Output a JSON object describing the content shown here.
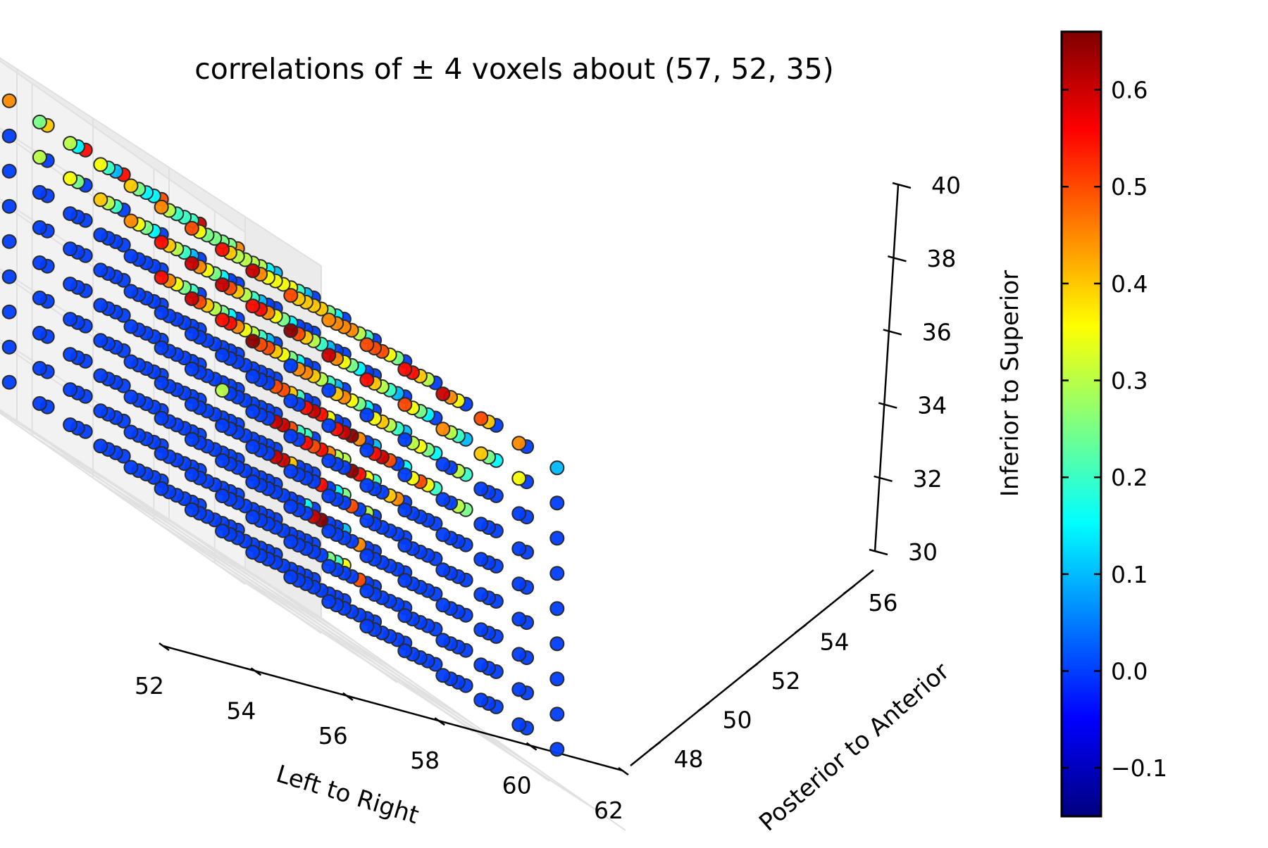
{
  "chart_data": {
    "type": "scatter",
    "projection": "3d",
    "title": "correlations of ± 4 voxels about (57, 52, 35)",
    "center": [
      57,
      52,
      35
    ],
    "radius": 4,
    "xlabel": "Left to Right",
    "ylabel": "Posterior to Anterior",
    "zlabel": "Inferior to Superior",
    "xlim": [
      52,
      62
    ],
    "ylim": [
      47,
      57
    ],
    "zlim": [
      30,
      40
    ],
    "xticks": [
      52,
      54,
      56,
      58,
      60,
      62
    ],
    "yticks": [
      48,
      50,
      52,
      54,
      56
    ],
    "zticks": [
      30,
      32,
      34,
      36,
      38,
      40
    ],
    "xtick_labels": [
      "52",
      "54",
      "56",
      "58",
      "60",
      "62"
    ],
    "ytick_labels": [
      "48",
      "50",
      "52",
      "54",
      "56"
    ],
    "ztick_labels": [
      "30",
      "32",
      "34",
      "36",
      "38",
      "40"
    ],
    "x_values": [
      53,
      54,
      55,
      56,
      57,
      58,
      59,
      60,
      61
    ],
    "y_values": [
      48,
      49,
      50,
      51,
      52,
      53,
      54,
      55,
      56
    ],
    "z_values": [
      31,
      32,
      33,
      34,
      35,
      36,
      37,
      38,
      39
    ],
    "value_layout": "values[z_index][y_index] is an array over x_values",
    "values": [
      [
        [
          0.0,
          0.0,
          0.0,
          0.0,
          0.0,
          0.0,
          0.0,
          0.0,
          0.0
        ],
        [
          0.0,
          0.0,
          0.0,
          0.0,
          0.0,
          0.0,
          0.0,
          0.0,
          0.0
        ],
        [
          0.0,
          0.0,
          0.0,
          0.0,
          0.0,
          0.0,
          0.0,
          0.0,
          0.0
        ],
        [
          0.0,
          0.0,
          0.0,
          0.0,
          0.0,
          0.0,
          0.0,
          0.0,
          0.0
        ],
        [
          0.0,
          0.0,
          0.0,
          0.0,
          0.0,
          0.0,
          0.0,
          0.0,
          0.0
        ],
        [
          0.0,
          0.0,
          0.0,
          0.0,
          0.0,
          0.0,
          0.0,
          0.0,
          0.0
        ],
        [
          0.0,
          0.0,
          0.0,
          0.0,
          0.0,
          0.0,
          0.0,
          0.0,
          0.0
        ],
        [
          0.0,
          0.0,
          0.0,
          0.0,
          0.0,
          0.0,
          0.0,
          0.0,
          0.0
        ],
        [
          0.0,
          0.0,
          0.0,
          0.0,
          0.0,
          0.0,
          0.0,
          0.0,
          0.0
        ]
      ],
      [
        [
          0.0,
          0.0,
          0.0,
          0.0,
          0.0,
          0.0,
          0.0,
          0.0,
          0.0
        ],
        [
          0.0,
          0.0,
          0.0,
          0.0,
          0.0,
          0.0,
          0.0,
          0.0,
          0.0
        ],
        [
          0.0,
          0.0,
          0.0,
          0.0,
          0.0,
          0.0,
          0.0,
          0.0,
          0.0
        ],
        [
          0.0,
          0.0,
          0.0,
          0.0,
          0.0,
          0.0,
          0.0,
          0.0,
          0.0
        ],
        [
          0.0,
          0.0,
          0.0,
          0.0,
          0.0,
          0.0,
          0.5,
          0.0,
          0.0
        ],
        [
          0.0,
          0.0,
          0.0,
          0.0,
          0.0,
          0.0,
          0.25,
          0.0,
          0.0
        ],
        [
          0.0,
          0.0,
          0.0,
          0.0,
          0.0,
          0.0,
          0.0,
          0.2,
          0.0
        ],
        [
          0.0,
          0.0,
          0.0,
          0.0,
          0.0,
          0.0,
          0.0,
          0.0,
          0.35
        ],
        [
          0.0,
          0.0,
          0.0,
          0.0,
          0.0,
          0.0,
          0.0,
          0.0,
          0.0
        ]
      ],
      [
        [
          0.0,
          0.0,
          0.0,
          0.0,
          0.0,
          0.0,
          0.0,
          0.0,
          0.0
        ],
        [
          0.0,
          0.0,
          0.0,
          0.0,
          0.0,
          0.0,
          0.0,
          0.0,
          0.0
        ],
        [
          0.0,
          0.0,
          0.0,
          0.0,
          0.0,
          0.0,
          0.0,
          0.0,
          0.0
        ],
        [
          0.0,
          0.0,
          0.0,
          0.0,
          0.6,
          0.0,
          0.0,
          0.0,
          0.0
        ],
        [
          0.0,
          0.0,
          0.0,
          0.0,
          0.0,
          0.65,
          0.45,
          0.0,
          0.0
        ],
        [
          0.0,
          0.0,
          0.0,
          0.0,
          0.0,
          0.0,
          0.0,
          0.0,
          0.0
        ],
        [
          0.0,
          0.0,
          0.0,
          0.0,
          0.0,
          0.0,
          0.0,
          0.0,
          0.0
        ],
        [
          0.0,
          0.0,
          0.0,
          0.0,
          0.0,
          0.0,
          0.0,
          0.15,
          0.1
        ],
        [
          0.0,
          0.0,
          0.0,
          0.0,
          0.0,
          0.0,
          0.0,
          0.0,
          0.0
        ]
      ],
      [
        [
          0.0,
          0.0,
          0.0,
          0.0,
          0.0,
          0.0,
          0.0,
          0.0,
          0.0
        ],
        [
          0.0,
          0.0,
          0.0,
          0.0,
          0.0,
          0.0,
          0.0,
          0.0,
          0.0
        ],
        [
          0.0,
          0.0,
          0.0,
          0.0,
          0.0,
          0.0,
          0.0,
          0.0,
          0.0
        ],
        [
          0.0,
          0.0,
          0.0,
          0.6,
          0.0,
          0.5,
          0.0,
          0.0,
          0.0
        ],
        [
          0.0,
          0.0,
          0.0,
          0.0,
          0.6,
          0.55,
          0.0,
          0.0,
          0.0
        ],
        [
          0.0,
          0.0,
          0.0,
          0.0,
          0.0,
          0.4,
          0.0,
          0.3,
          0.0
        ],
        [
          0.0,
          0.0,
          0.0,
          0.0,
          0.0,
          0.0,
          0.0,
          0.15,
          0.0
        ],
        [
          0.0,
          0.0,
          0.0,
          0.0,
          0.0,
          0.0,
          0.0,
          0.0,
          0.25
        ],
        [
          0.0,
          0.0,
          0.0,
          0.0,
          0.0,
          0.0,
          0.0,
          0.0,
          0.0
        ]
      ],
      [
        [
          0.0,
          0.0,
          0.0,
          0.0,
          0.0,
          0.0,
          0.0,
          0.0,
          0.0
        ],
        [
          0.3,
          0.0,
          0.0,
          0.0,
          0.0,
          0.0,
          0.0,
          0.0,
          0.0
        ],
        [
          0.0,
          0.0,
          0.0,
          0.55,
          0.0,
          0.0,
          0.0,
          0.0,
          0.0
        ],
        [
          0.0,
          0.0,
          0.0,
          0.6,
          0.5,
          0.65,
          0.4,
          0.0,
          0.0
        ],
        [
          0.0,
          0.0,
          0.0,
          0.0,
          0.6,
          0.55,
          0.55,
          0.45,
          0.0
        ],
        [
          0.0,
          0.0,
          0.0,
          0.0,
          0.0,
          0.5,
          0.45,
          0.35,
          0.0
        ],
        [
          0.0,
          0.0,
          0.0,
          0.0,
          0.0,
          0.0,
          0.2,
          0.3,
          0.2
        ],
        [
          0.0,
          0.0,
          0.0,
          0.0,
          0.0,
          0.0,
          0.0,
          0.2,
          0.3
        ],
        [
          0.0,
          0.0,
          0.0,
          0.0,
          0.0,
          0.0,
          0.0,
          0.0,
          0.0
        ]
      ],
      [
        [
          0.0,
          0.0,
          0.0,
          0.0,
          0.0,
          0.0,
          0.0,
          0.0,
          0.0
        ],
        [
          0.0,
          0.0,
          0.0,
          0.55,
          0.55,
          0.35,
          0.0,
          0.0,
          0.0
        ],
        [
          0.0,
          0.0,
          0.0,
          0.55,
          0.6,
          0.6,
          0.5,
          0.3,
          0.0
        ],
        [
          0.0,
          0.0,
          0.0,
          0.5,
          0.6,
          0.65,
          0.5,
          0.35,
          0.25
        ],
        [
          0.0,
          0.0,
          0.0,
          0.0,
          0.5,
          0.55,
          0.45,
          0.0,
          0.2
        ],
        [
          0.0,
          0.0,
          0.0,
          0.0,
          0.0,
          0.4,
          0.35,
          0.0,
          0.15
        ],
        [
          0.0,
          0.0,
          0.0,
          0.0,
          0.0,
          0.0,
          0.2,
          0.0,
          0.1
        ],
        [
          0.0,
          0.0,
          0.0,
          0.0,
          0.0,
          0.0,
          0.0,
          0.0,
          0.0
        ],
        [
          0.0,
          0.0,
          0.0,
          0.0,
          0.0,
          0.0,
          0.0,
          0.0,
          0.0
        ]
      ],
      [
        [
          0.65,
          0.0,
          0.0,
          0.0,
          0.0,
          0.0,
          0.0,
          0.0,
          0.0
        ],
        [
          0.55,
          0.5,
          0.45,
          0.4,
          0.35,
          0.3,
          0.0,
          0.0,
          0.0
        ],
        [
          0.6,
          0.55,
          0.5,
          0.45,
          0.45,
          0.4,
          0.35,
          0.3,
          0.0
        ],
        [
          0.55,
          0.5,
          0.45,
          0.4,
          0.4,
          0.35,
          0.3,
          0.25,
          0.2
        ],
        [
          0.0,
          0.45,
          0.4,
          0.35,
          0.35,
          0.3,
          0.25,
          0.2,
          0.15
        ],
        [
          0.0,
          0.0,
          0.35,
          0.3,
          0.3,
          0.25,
          0.2,
          0.15,
          0.1
        ],
        [
          0.0,
          0.0,
          0.0,
          0.25,
          0.25,
          0.2,
          0.15,
          0.1,
          0.0
        ],
        [
          0.0,
          0.0,
          0.0,
          0.0,
          0.2,
          0.15,
          0.1,
          0.0,
          0.0
        ],
        [
          0.0,
          0.0,
          0.0,
          0.0,
          0.0,
          0.0,
          0.0,
          0.0,
          0.0
        ]
      ],
      [
        [
          0.55,
          0.65,
          0.6,
          0.55,
          0.5,
          0.45,
          0.4,
          0.35,
          0.0
        ],
        [
          0.6,
          0.55,
          0.5,
          0.45,
          0.4,
          0.35,
          0.3,
          0.25,
          0.0
        ],
        [
          0.6,
          0.5,
          0.45,
          0.4,
          0.35,
          0.3,
          0.25,
          0.2,
          0.15
        ],
        [
          0.55,
          0.45,
          0.4,
          0.35,
          0.3,
          0.25,
          0.2,
          0.15,
          0.1
        ],
        [
          0.45,
          0.4,
          0.35,
          0.3,
          0.25,
          0.2,
          0.15,
          0.1,
          0.0
        ],
        [
          0.4,
          0.35,
          0.3,
          0.25,
          0.2,
          0.15,
          0.1,
          0.0,
          0.0
        ],
        [
          0.35,
          0.3,
          0.25,
          0.2,
          0.15,
          0.1,
          0.0,
          0.0,
          0.0
        ],
        [
          0.3,
          0.25,
          0.2,
          0.15,
          0.1,
          0.0,
          0.0,
          0.0,
          0.0
        ],
        [
          0.0,
          0.0,
          0.0,
          0.0,
          0.0,
          0.0,
          0.0,
          0.0,
          0.0
        ]
      ],
      [
        [
          0.6,
          0.5,
          0.45,
          0.5,
          0.55,
          0.6,
          0.5,
          0.45,
          0.1
        ],
        [
          0.55,
          0.45,
          0.4,
          0.45,
          0.5,
          0.55,
          0.45,
          0.4,
          0.0
        ],
        [
          0.5,
          0.4,
          0.35,
          0.4,
          0.45,
          0.5,
          0.4,
          0.35,
          0.0
        ],
        [
          0.45,
          0.35,
          0.3,
          0.35,
          0.4,
          0.45,
          0.35,
          0.3,
          0.0
        ],
        [
          0.4,
          0.3,
          0.25,
          0.3,
          0.35,
          0.4,
          0.3,
          0.25,
          0.0
        ],
        [
          0.35,
          0.25,
          0.2,
          0.25,
          0.3,
          0.35,
          0.25,
          0.2,
          0.0
        ],
        [
          0.3,
          0.2,
          0.15,
          0.2,
          0.25,
          0.3,
          0.2,
          0.15,
          0.0
        ],
        [
          0.25,
          0.15,
          0.1,
          0.15,
          0.2,
          0.25,
          0.15,
          0.1,
          0.0
        ],
        [
          0.45,
          0.4,
          0.55,
          0.55,
          0.5,
          0.6,
          0.45,
          0.1,
          0.0
        ]
      ]
    ],
    "colorbar": {
      "colormap": "jet",
      "range": [
        -0.15,
        0.66
      ],
      "ticks": [
        -0.1,
        0.0,
        0.1,
        0.2,
        0.3,
        0.4,
        0.5,
        0.6
      ],
      "tick_labels": [
        "−0.1",
        "0.0",
        "0.1",
        "0.2",
        "0.3",
        "0.4",
        "0.5",
        "0.6"
      ]
    },
    "grid": true
  }
}
